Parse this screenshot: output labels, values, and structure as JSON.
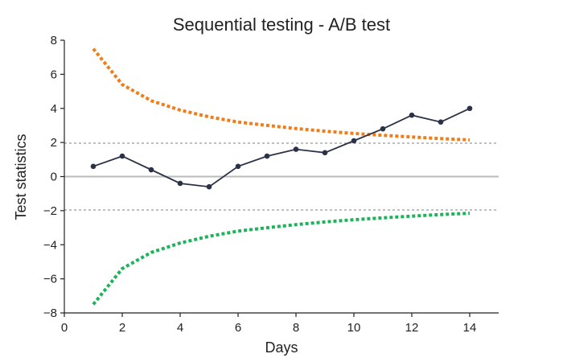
{
  "chart_data": {
    "type": "line",
    "title": "Sequential testing - A/B test",
    "xlabel": "Days",
    "ylabel": "Test statistics",
    "xlim": [
      0,
      15
    ],
    "ylim": [
      -8,
      8
    ],
    "xticks": [
      0,
      2,
      4,
      6,
      8,
      10,
      12,
      14
    ],
    "yticks": [
      -8,
      -6,
      -4,
      -2,
      0,
      2,
      4,
      6,
      8
    ],
    "grid": false,
    "reference_lines": [
      {
        "y": 0,
        "style": "solid",
        "color": "#bbbbbb"
      },
      {
        "y": 1.96,
        "style": "dotted",
        "color": "#999999"
      },
      {
        "y": -1.96,
        "style": "dotted",
        "color": "#999999"
      }
    ],
    "series": [
      {
        "color": "#f07d19",
        "style": "dotted",
        "x": [
          1,
          2,
          3,
          4,
          5,
          6,
          7,
          8,
          9,
          10,
          11,
          12,
          13,
          14
        ],
        "values": [
          7.5,
          5.4,
          4.45,
          3.9,
          3.5,
          3.2,
          3.0,
          2.82,
          2.66,
          2.53,
          2.42,
          2.32,
          2.23,
          2.15
        ]
      },
      {
        "color": "#1db35a",
        "style": "dotted",
        "x": [
          1,
          2,
          3,
          4,
          5,
          6,
          7,
          8,
          9,
          10,
          11,
          12,
          13,
          14
        ],
        "values": [
          -7.5,
          -5.4,
          -4.45,
          -3.9,
          -3.5,
          -3.2,
          -3.0,
          -2.82,
          -2.66,
          -2.53,
          -2.42,
          -2.32,
          -2.23,
          -2.15
        ]
      },
      {
        "color": "#2b3147",
        "style": "solid-markers",
        "x": [
          1,
          2,
          3,
          4,
          5,
          6,
          7,
          8,
          9,
          10,
          11,
          12,
          13,
          14
        ],
        "values": [
          0.6,
          1.2,
          0.4,
          -0.4,
          -0.6,
          0.6,
          1.2,
          1.6,
          1.4,
          2.1,
          2.8,
          3.6,
          3.2,
          4.0
        ]
      }
    ]
  }
}
